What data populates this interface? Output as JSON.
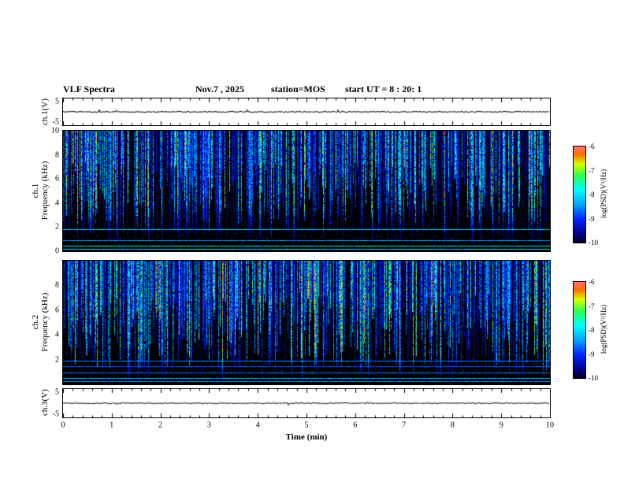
{
  "figure": {
    "title": "VLF Spectra",
    "date": "Nov.7 , 2025",
    "station": "station=MOS",
    "start_ut": "start UT  =   8 : 20: 1"
  },
  "x_axis": {
    "label": "Time (min)",
    "range": [
      0,
      10
    ],
    "ticks": [
      "0",
      "1",
      "2",
      "3",
      "4",
      "5",
      "6",
      "7",
      "8",
      "9",
      "10"
    ]
  },
  "colorbar": {
    "label": "log(PSD)(V²/Hz)",
    "ticks": [
      "-6",
      "-7",
      "-8",
      "-9",
      "-10"
    ],
    "range": [
      -10,
      -6
    ],
    "colormap_stops": [
      [
        0.0,
        "#000020"
      ],
      [
        0.1,
        "#000090"
      ],
      [
        0.25,
        "#0028ff"
      ],
      [
        0.4,
        "#00a8ff"
      ],
      [
        0.55,
        "#00ffff"
      ],
      [
        0.7,
        "#30ff50"
      ],
      [
        0.82,
        "#d8ff00"
      ],
      [
        0.92,
        "#ff7000"
      ],
      [
        1.0,
        "#ff7070"
      ]
    ]
  },
  "chart_data": [
    {
      "type": "line",
      "name": "ch1-voltage-strip",
      "ylabel": "ch.1(V)",
      "ylim": [
        -5,
        5
      ],
      "ytick_labels": [
        "5",
        "-5"
      ],
      "x_range": [
        0,
        10
      ],
      "signal": "flat trace near 0 V with minor noise",
      "seed": 7
    },
    {
      "type": "heatmap",
      "name": "ch1-spectrogram",
      "ylabel_lines": [
        "ch.1",
        "Frequency (kHz)"
      ],
      "ylim": [
        0,
        10
      ],
      "ytick_values": [
        10,
        8,
        6,
        4,
        2,
        0
      ],
      "value_range_log_psd": [
        -10,
        -6
      ],
      "content": "dense impulsive broadband vertical streaks (sferics), strongest 4-10 kHz, black noise floor",
      "density": 0.92,
      "low_freq_cutoff_khz": 4,
      "seed": 42,
      "hlines": [
        {
          "khz": 1.8,
          "level": 0.45
        },
        {
          "khz": 0.9,
          "level": 0.4
        },
        {
          "khz": 0.45,
          "level": 0.55
        },
        {
          "khz": 0.2,
          "level": 0.5
        }
      ]
    },
    {
      "type": "heatmap",
      "name": "ch2-spectrogram",
      "ylabel_lines": [
        "ch.2",
        "Frequency (kHz)"
      ],
      "ylim": [
        0,
        10
      ],
      "ytick_values": [
        8,
        6,
        4,
        2
      ],
      "value_range_log_psd": [
        -10,
        -6
      ],
      "content": "dense impulsive broadband vertical streaks, activity extending lower in frequency",
      "density": 0.94,
      "low_freq_cutoff_khz": 2.5,
      "seed": 1337,
      "hlines": [
        {
          "khz": 1.9,
          "level": 0.35
        },
        {
          "khz": 1.45,
          "level": 0.3
        },
        {
          "khz": 0.95,
          "level": 0.35
        },
        {
          "khz": 0.5,
          "level": 0.45
        },
        {
          "khz": 0.25,
          "level": 0.4
        }
      ]
    },
    {
      "type": "line",
      "name": "ch3-voltage-strip",
      "ylabel": "ch.3(V)",
      "ylim": [
        -5,
        5
      ],
      "ytick_labels": [
        "5",
        "-5"
      ],
      "x_range": [
        0,
        10
      ],
      "signal": "flat trace near 0 V with minor noise",
      "seed": 9
    }
  ]
}
